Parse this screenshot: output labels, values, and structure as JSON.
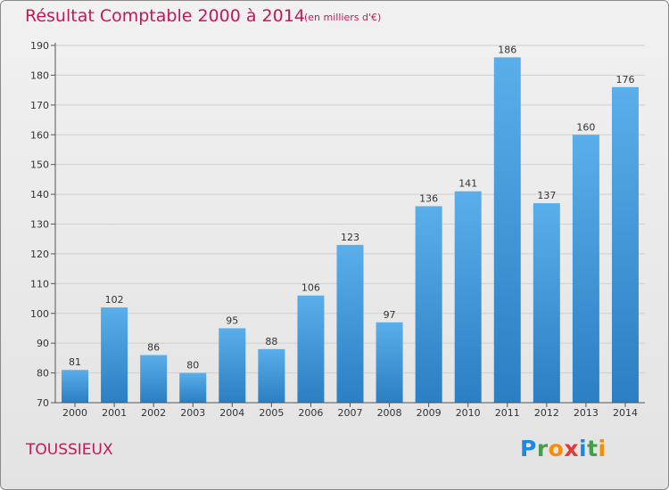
{
  "header": {
    "title": "Résultat Comptable 2000 à 2014",
    "subtitle": "(en milliers d'€)"
  },
  "footer": {
    "commune": "TOUSSIEUX",
    "logo_letters": [
      {
        "ch": "P",
        "color": "#1e88e5"
      },
      {
        "ch": "r",
        "color": "#43a047"
      },
      {
        "ch": "o",
        "color": "#fb8c00"
      },
      {
        "ch": "x",
        "color": "#e53935"
      },
      {
        "ch": "i",
        "color": "#1e88e5"
      },
      {
        "ch": "t",
        "color": "#43a047"
      },
      {
        "ch": "i",
        "color": "#fb8c00"
      }
    ]
  },
  "colors": {
    "title": "#c2185b",
    "bar_top": "#5aaeea",
    "bar_bottom": "#2b7fc2",
    "axis": "#555555",
    "grid": "#d0d0d0"
  },
  "chart_data": {
    "type": "bar",
    "title": "Résultat Comptable 2000 à 2014",
    "subtitle": "(en milliers d'€)",
    "xlabel": "",
    "ylabel": "",
    "categories": [
      "2000",
      "2001",
      "2002",
      "2003",
      "2004",
      "2005",
      "2006",
      "2007",
      "2008",
      "2009",
      "2010",
      "2011",
      "2012",
      "2013",
      "2014"
    ],
    "values": [
      81,
      102,
      86,
      80,
      95,
      88,
      106,
      123,
      97,
      136,
      141,
      186,
      137,
      160,
      176
    ],
    "ylim": [
      70,
      190
    ],
    "yticks": [
      70,
      80,
      90,
      100,
      110,
      120,
      130,
      140,
      150,
      160,
      170,
      180,
      190
    ],
    "grid": true,
    "legend": "none"
  }
}
